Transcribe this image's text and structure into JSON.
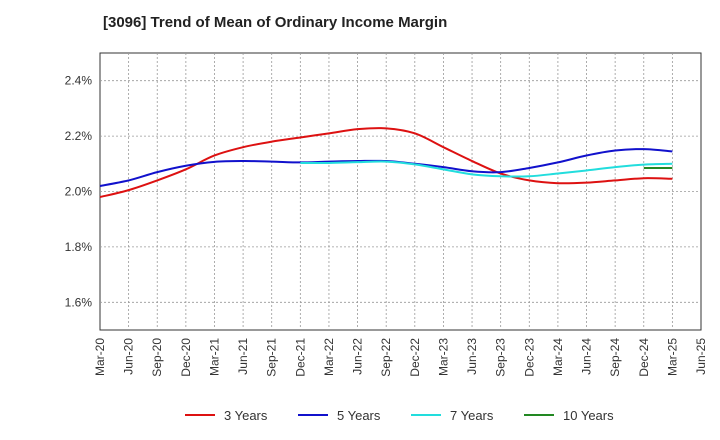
{
  "chart_data": {
    "type": "line",
    "title": "[3096]  Trend of Mean of Ordinary Income Margin",
    "xlabel": "",
    "ylabel": "",
    "x_ticks": [
      "Mar-20",
      "Jun-20",
      "Sep-20",
      "Dec-20",
      "Mar-21",
      "Jun-21",
      "Sep-21",
      "Dec-21",
      "Mar-22",
      "Jun-22",
      "Sep-22",
      "Dec-22",
      "Mar-23",
      "Jun-23",
      "Sep-23",
      "Dec-23",
      "Mar-24",
      "Jun-24",
      "Sep-24",
      "Dec-24",
      "Mar-25",
      "Jun-25"
    ],
    "y_ticks": [
      "1.6%",
      "1.8%",
      "2.0%",
      "2.2%",
      "2.4%"
    ],
    "ylim": [
      1.5,
      2.5
    ],
    "grid": true,
    "legend_position": "bottom",
    "series": [
      {
        "name": "3 Years",
        "color": "#dd1111",
        "x": [
          "Mar-20",
          "Jun-20",
          "Sep-20",
          "Dec-20",
          "Mar-21",
          "Jun-21",
          "Sep-21",
          "Dec-21",
          "Mar-22",
          "Jun-22",
          "Sep-22",
          "Dec-22",
          "Mar-23",
          "Jun-23",
          "Sep-23",
          "Dec-23",
          "Mar-24",
          "Jun-24",
          "Sep-24",
          "Dec-24",
          "Mar-25"
        ],
        "values": [
          1.98,
          2.005,
          2.04,
          2.08,
          2.13,
          2.16,
          2.18,
          2.195,
          2.21,
          2.225,
          2.228,
          2.21,
          2.16,
          2.11,
          2.065,
          2.04,
          2.03,
          2.032,
          2.04,
          2.048,
          2.046
        ]
      },
      {
        "name": "5 Years",
        "color": "#1111cc",
        "x": [
          "Mar-20",
          "Jun-20",
          "Sep-20",
          "Dec-20",
          "Mar-21",
          "Jun-21",
          "Sep-21",
          "Dec-21",
          "Mar-22",
          "Jun-22",
          "Sep-22",
          "Dec-22",
          "Mar-23",
          "Jun-23",
          "Sep-23",
          "Dec-23",
          "Mar-24",
          "Jun-24",
          "Sep-24",
          "Dec-24",
          "Mar-25"
        ],
        "values": [
          2.02,
          2.04,
          2.07,
          2.093,
          2.107,
          2.11,
          2.108,
          2.105,
          2.108,
          2.11,
          2.11,
          2.1,
          2.088,
          2.073,
          2.07,
          2.085,
          2.105,
          2.13,
          2.148,
          2.153,
          2.145
        ]
      },
      {
        "name": "7 Years",
        "color": "#22dddd",
        "x": [
          "Dec-21",
          "Mar-22",
          "Jun-22",
          "Sep-22",
          "Dec-22",
          "Mar-23",
          "Jun-23",
          "Sep-23",
          "Dec-23",
          "Mar-24",
          "Jun-24",
          "Sep-24",
          "Dec-24",
          "Mar-25"
        ],
        "values": [
          2.103,
          2.103,
          2.106,
          2.108,
          2.098,
          2.08,
          2.062,
          2.055,
          2.055,
          2.065,
          2.076,
          2.088,
          2.097,
          2.1
        ]
      },
      {
        "name": "10 Years",
        "color": "#228822",
        "x": [
          "Dec-24",
          "Mar-25"
        ],
        "values": [
          2.085,
          2.085
        ]
      }
    ]
  }
}
